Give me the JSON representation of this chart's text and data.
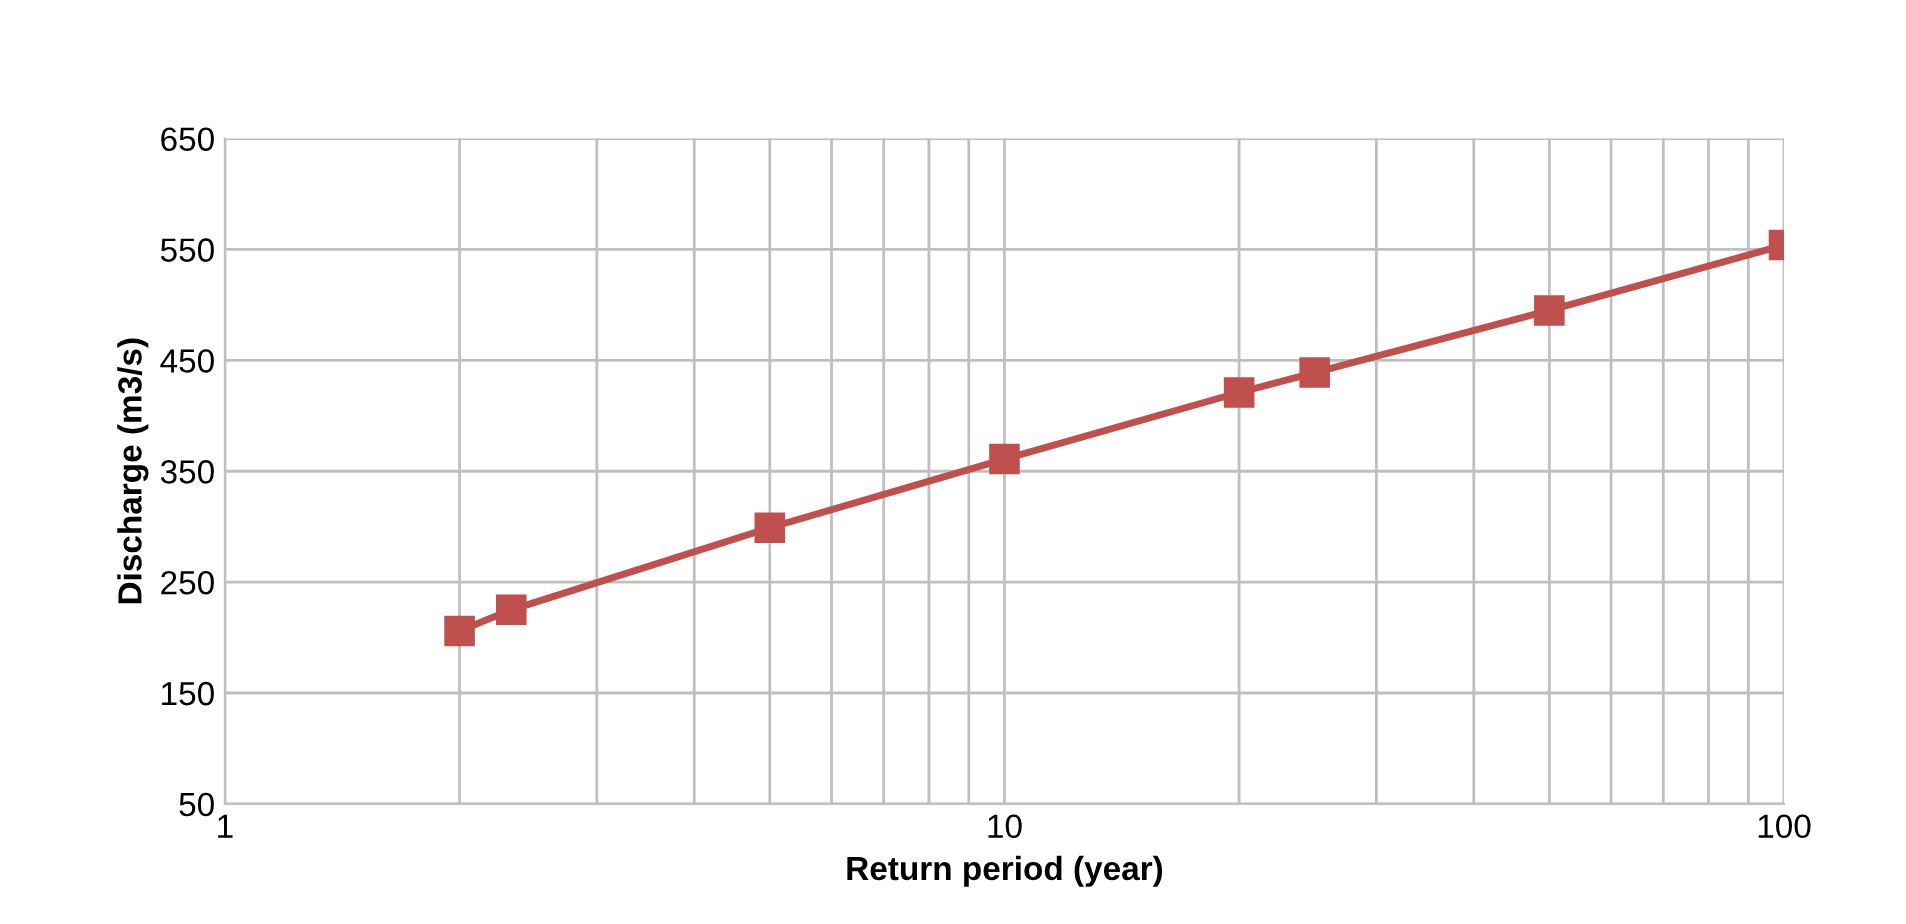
{
  "chart_data": {
    "type": "line",
    "xlabel": "Return period (year)",
    "ylabel": "Discharge (m3/s)",
    "x": [
      2,
      2.33,
      5,
      10,
      20,
      25,
      50,
      100
    ],
    "series": [
      {
        "color": "#c0504d",
        "values": [
          206,
          225,
          299,
          361,
          421,
          439,
          495,
          554
        ]
      }
    ],
    "log": "x",
    "xlim": [
      1,
      100
    ],
    "xticks": [
      1,
      10,
      100
    ],
    "ylim": [
      50,
      650
    ],
    "yticks": [
      50,
      150,
      250,
      350,
      450,
      550,
      650
    ],
    "grid": true,
    "marker": "square",
    "line_style": "solid",
    "legend": false
  }
}
